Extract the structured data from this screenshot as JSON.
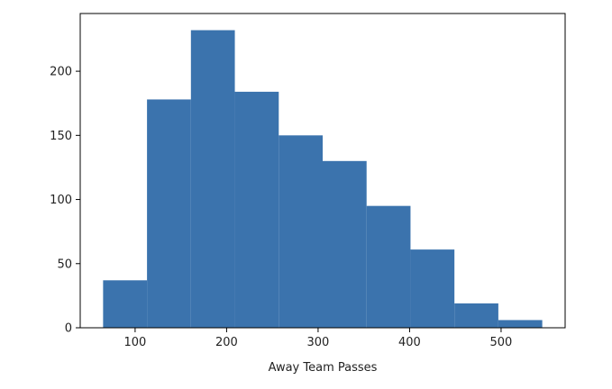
{
  "chart_data": {
    "type": "bar",
    "subtype": "histogram",
    "title": "",
    "xlabel": "Away Team Passes",
    "ylabel": "",
    "xlim": [
      40,
      570
    ],
    "ylim": [
      0,
      245
    ],
    "x_ticks": [
      100,
      200,
      300,
      400,
      500
    ],
    "y_ticks": [
      0,
      50,
      100,
      150,
      200
    ],
    "bins": [
      {
        "x0": 65,
        "x1": 113,
        "value": 37
      },
      {
        "x0": 113,
        "x1": 161,
        "value": 178
      },
      {
        "x0": 161,
        "x1": 209,
        "value": 232
      },
      {
        "x0": 209,
        "x1": 257,
        "value": 184
      },
      {
        "x0": 257,
        "x1": 305,
        "value": 150
      },
      {
        "x0": 305,
        "x1": 353,
        "value": 130
      },
      {
        "x0": 353,
        "x1": 401,
        "value": 95
      },
      {
        "x0": 401,
        "x1": 449,
        "value": 61
      },
      {
        "x0": 449,
        "x1": 497,
        "value": 19
      },
      {
        "x0": 497,
        "x1": 545,
        "value": 6
      }
    ],
    "grid": false,
    "legend": "none",
    "bar_color": "#3b73ad"
  }
}
